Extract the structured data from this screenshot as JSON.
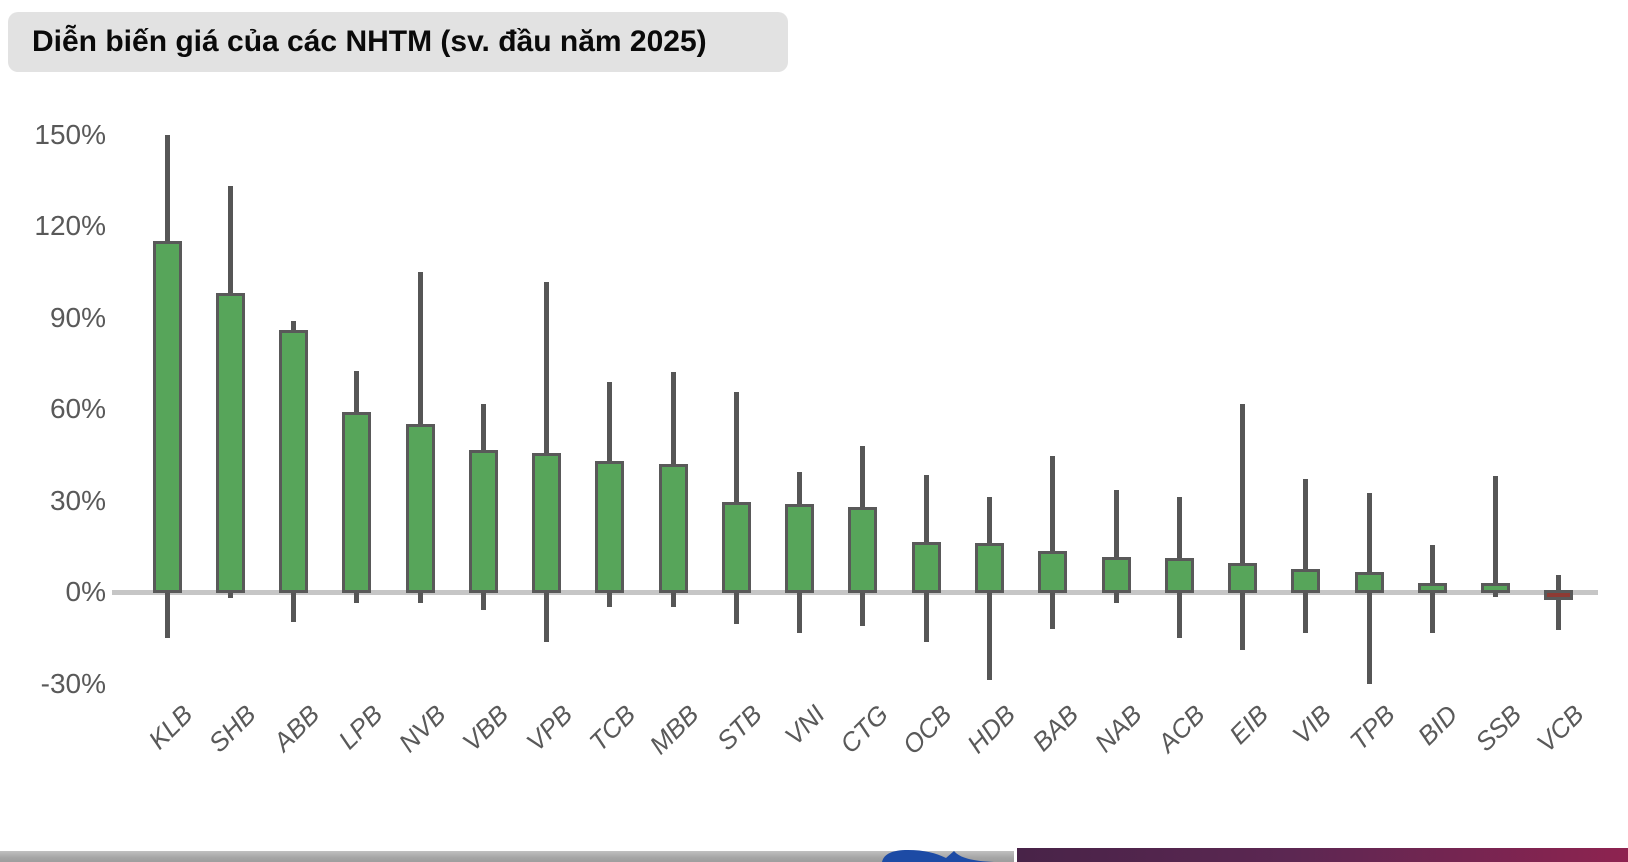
{
  "title": {
    "text": "Diễn biến giá của các NHTM (sv. đầu năm 2025)",
    "banner_background": "#e2e2e2",
    "text_color": "#0a0a0a"
  },
  "chart_data": {
    "type": "bar",
    "subtype": "range-bars-with-high-low-whiskers",
    "title": "Diễn biến giá của các NHTM (sv. đầu năm 2025)",
    "xlabel": "",
    "ylabel": "",
    "ylim": [
      -30,
      150
    ],
    "grid": false,
    "legend": "none",
    "yticks": [
      {
        "value": 150,
        "label": "150%"
      },
      {
        "value": 120,
        "label": "120%"
      },
      {
        "value": 90,
        "label": "90%"
      },
      {
        "value": 60,
        "label": "60%"
      },
      {
        "value": 30,
        "label": "30%"
      },
      {
        "value": 0,
        "label": "0%"
      },
      {
        "value": -30,
        "label": "-30%"
      }
    ],
    "categories": [
      "KLB",
      "SHB",
      "ABB",
      "LPB",
      "NVB",
      "VBB",
      "VPB",
      "TCB",
      "MBB",
      "STB",
      "VNI",
      "CTG",
      "OCB",
      "HDB",
      "BAB",
      "NAB",
      "ACB",
      "EIB",
      "VIB",
      "TPB",
      "BID",
      "SSB",
      "VCB"
    ],
    "series": [
      {
        "name": "current_change_pct",
        "values": [
          115,
          98,
          86,
          59,
          55,
          46.5,
          45.5,
          43,
          42,
          29.5,
          29,
          28,
          16.5,
          16,
          13.5,
          11.5,
          11,
          9.5,
          7.5,
          6.5,
          2.5,
          1,
          -1.5
        ]
      },
      {
        "name": "high_pct",
        "values": [
          150,
          133,
          89,
          72.5,
          105,
          61.5,
          101.5,
          69,
          72,
          65.5,
          39.5,
          48,
          38.5,
          31,
          44.5,
          33.5,
          31,
          61.5,
          37,
          32.5,
          15.5,
          38,
          5.5
        ]
      },
      {
        "name": "low_pct",
        "values": [
          -15,
          -2,
          -10,
          -3.5,
          -3.5,
          -6,
          -16.5,
          -5,
          -5,
          -10.5,
          -13.5,
          -11,
          -16.5,
          -29,
          -12,
          -3.5,
          -15,
          -19,
          -13.5,
          -30,
          -13.5,
          -1.5,
          -12.5
        ]
      }
    ],
    "colors": {
      "bar_positive": "#57a55a",
      "bar_negative": "#8e3b34",
      "bar_border": "#595959",
      "whisker": "#565656",
      "zero_line": "#c6c6c6",
      "axis_label": "#595959"
    }
  },
  "footer": {
    "gray_bar_color": "#a5a5a5",
    "logo_icon_color": "#1d4ba5",
    "accent_gradient_start": "#482348",
    "accent_gradient_end": "#8e2350"
  }
}
